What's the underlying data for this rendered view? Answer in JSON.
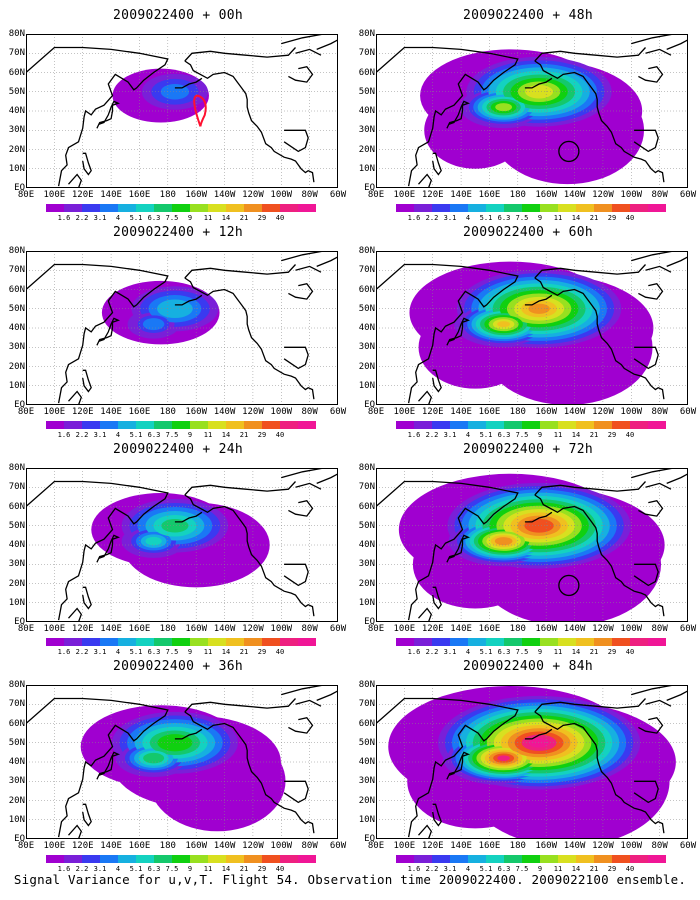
{
  "figure": {
    "footer": "Signal Variance for u,v,T. Flight 54. Observation time 2009022400. 2009022100 ensemble."
  },
  "lat_labels": [
    "80N",
    "70N",
    "60N",
    "50N",
    "40N",
    "30N",
    "20N",
    "10N",
    "EQ"
  ],
  "lon_labels": [
    "80E",
    "100E",
    "120E",
    "140E",
    "160E",
    "180",
    "160W",
    "140W",
    "120W",
    "100W",
    "80W",
    "60W"
  ],
  "colorbar": {
    "labels": [
      "1.6",
      "2.2",
      "3.1",
      "4",
      "5.1",
      "6.3",
      "7.5",
      "9",
      "11",
      "14",
      "21",
      "29",
      "40"
    ],
    "colors": [
      "#a000d0",
      "#7a1fd8",
      "#3a3af0",
      "#1a78f5",
      "#16b0e0",
      "#14d2c0",
      "#14c86c",
      "#10d010",
      "#98e020",
      "#d8e020",
      "#f0c020",
      "#f09020",
      "#f05020",
      "#ee2080",
      "#f01696"
    ]
  },
  "panels": [
    {
      "title": "2009022400 + 00h",
      "level": 0,
      "circle": false,
      "flight_track": true
    },
    {
      "title": "2009022400 + 48h",
      "level": 4,
      "circle": true,
      "flight_track": false
    },
    {
      "title": "2009022400 + 12h",
      "level": 1,
      "circle": false,
      "flight_track": false
    },
    {
      "title": "2009022400 + 60h",
      "level": 5,
      "circle": false,
      "flight_track": false
    },
    {
      "title": "2009022400 + 24h",
      "level": 2,
      "circle": false,
      "flight_track": false
    },
    {
      "title": "2009022400 + 72h",
      "level": 6,
      "circle": true,
      "flight_track": false
    },
    {
      "title": "2009022400 + 36h",
      "level": 3,
      "circle": false,
      "flight_track": false
    },
    {
      "title": "2009022400 + 84h",
      "level": 7,
      "circle": false,
      "flight_track": false
    }
  ]
}
